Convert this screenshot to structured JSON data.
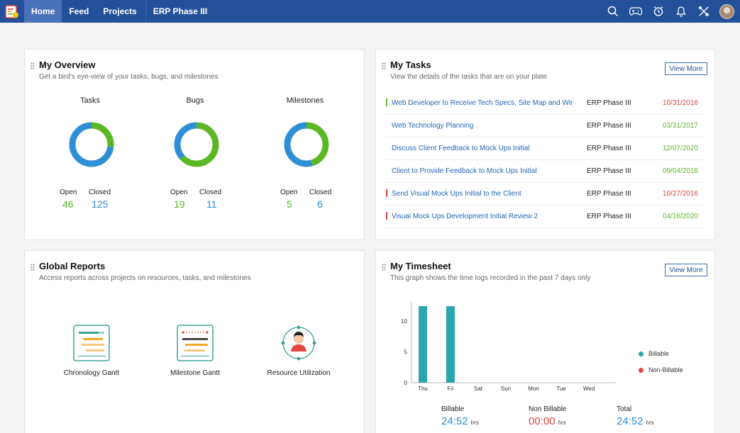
{
  "nav": {
    "items": [
      {
        "label": "Home",
        "active": true
      },
      {
        "label": "Feed",
        "active": false
      },
      {
        "label": "Projects",
        "active": false
      }
    ],
    "project": "ERP Phase III",
    "icons": [
      "search-icon",
      "gamepad-icon",
      "clock-icon",
      "bell-icon",
      "tools-icon"
    ]
  },
  "overview": {
    "title": "My Overview",
    "subtitle": "Get a bird's eye-view of your tasks, bugs, and milestones",
    "open_label": "Open",
    "closed_label": "Closed",
    "items": [
      {
        "label": "Tasks",
        "open": 46,
        "closed": 125,
        "open_display": "46",
        "closed_display": "125"
      },
      {
        "label": "Bugs",
        "open": 19,
        "closed": 11,
        "open_display": "19",
        "closed_display": "11"
      },
      {
        "label": "Milestones",
        "open": 5,
        "closed": 6,
        "open_display": "5",
        "closed_display": "6"
      }
    ],
    "colors": {
      "open": "#5bb724",
      "closed": "#2e8fd6"
    }
  },
  "tasks": {
    "title": "My Tasks",
    "subtitle": "View the details of the tasks that are on your plate",
    "view_more": "View More",
    "rows": [
      {
        "name": "Web Developer to Receive Tech Specs, Site Map and Wir",
        "project": "ERP Phase III",
        "date": "10/31/2016",
        "date_status": "overdue",
        "flag": "#5bb724"
      },
      {
        "name": "Web Technology Planning",
        "project": "ERP Phase III",
        "date": "03/31/2017",
        "date_status": "ok",
        "flag": ""
      },
      {
        "name": "Discuss Client Feedback to Mock Ups Initial",
        "project": "ERP Phase III",
        "date": "12/07/2020",
        "date_status": "ok",
        "flag": ""
      },
      {
        "name": "Client to Provide Feedback to Mock Ups Initial",
        "project": "ERP Phase III",
        "date": "09/04/2018",
        "date_status": "ok",
        "flag": ""
      },
      {
        "name": "Send Visual Mock Ups Initial to the Client",
        "project": "ERP Phase III",
        "date": "10/27/2016",
        "date_status": "overdue",
        "flag": "#e0463e"
      },
      {
        "name": "Visual Mock Ups Development Initial Review 2",
        "project": "ERP Phase III",
        "date": "04/16/2020",
        "date_status": "ok",
        "flag": "#e0463e"
      }
    ],
    "colors": {
      "overdue": "#e0463e",
      "ok": "#5bb724"
    }
  },
  "reports": {
    "title": "Global Reports",
    "subtitle": "Access reports across projects on resources, tasks, and milestones",
    "items": [
      {
        "label": "Chronology Gantt",
        "icon": "chronology-gantt-icon"
      },
      {
        "label": "Milestone Gantt",
        "icon": "milestone-gantt-icon"
      },
      {
        "label": "Resource Utilization",
        "icon": "resource-utilization-icon"
      }
    ]
  },
  "timesheet": {
    "title": "My Timesheet",
    "subtitle": "This graph shows the time logs recorded in the past 7 days only",
    "view_more": "View More",
    "billable_label": "Billable",
    "non_billable_label": "Non Billable",
    "total_label": "Total",
    "billable_value": "24:52",
    "non_billable_value": "00:00",
    "total_value": "24:52",
    "unit": "hrs"
  },
  "chart_data": {
    "type": "bar",
    "categories": [
      "Thu",
      "Fri",
      "Sat",
      "Sun",
      "Mon",
      "Tue",
      "Wed"
    ],
    "series": [
      {
        "name": "Billable",
        "values": [
          12.4,
          12.4,
          0,
          0,
          0,
          0,
          0
        ],
        "color": "#2ba6ad"
      },
      {
        "name": "Non-Billable",
        "values": [
          0,
          0,
          0,
          0,
          0,
          0,
          0
        ],
        "color": "#e0463e"
      }
    ],
    "yticks": [
      0,
      5,
      10
    ],
    "ylim": [
      0,
      12.4
    ],
    "legend": "right"
  }
}
